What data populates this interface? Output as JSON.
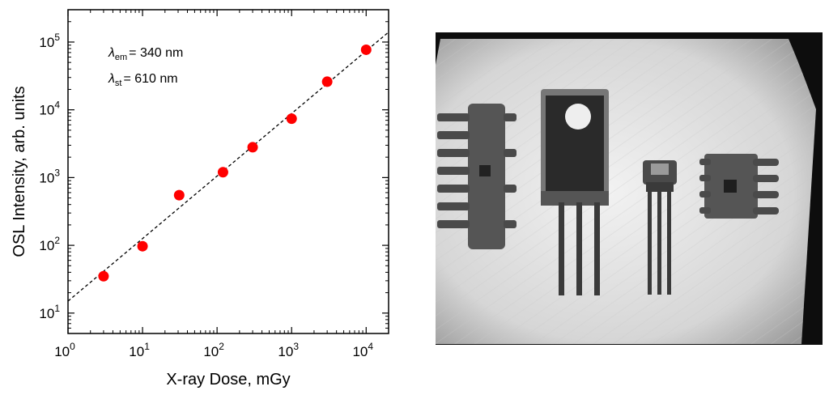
{
  "chart_data": {
    "type": "scatter",
    "xlabel": "X-ray Dose, mGy",
    "ylabel": "OSL Intensity, arb. units",
    "xscale": "log",
    "yscale": "log",
    "xlim": [
      1,
      20000
    ],
    "ylim": [
      5,
      300000
    ],
    "x_ticks": [
      {
        "value": 1,
        "base": "10",
        "exp": "0"
      },
      {
        "value": 10,
        "base": "10",
        "exp": "1"
      },
      {
        "value": 100,
        "base": "10",
        "exp": "2"
      },
      {
        "value": 1000,
        "base": "10",
        "exp": "3"
      },
      {
        "value": 10000,
        "base": "10",
        "exp": "4"
      }
    ],
    "y_ticks": [
      {
        "value": 10,
        "base": "10",
        "exp": "1"
      },
      {
        "value": 100,
        "base": "10",
        "exp": "2"
      },
      {
        "value": 1000,
        "base": "10",
        "exp": "3"
      },
      {
        "value": 10000,
        "base": "10",
        "exp": "4"
      },
      {
        "value": 100000,
        "base": "10",
        "exp": "5"
      }
    ],
    "series": [
      {
        "color": "#ff0000",
        "points": [
          {
            "x": 3,
            "y": 35
          },
          {
            "x": 10,
            "y": 97
          },
          {
            "x": 31,
            "y": 550
          },
          {
            "x": 120,
            "y": 1200
          },
          {
            "x": 300,
            "y": 2800
          },
          {
            "x": 1000,
            "y": 7400
          },
          {
            "x": 3000,
            "y": 26000
          },
          {
            "x": 10000,
            "y": 77000
          }
        ]
      }
    ],
    "fit_line": {
      "style": "dashed",
      "color": "#000000",
      "x": [
        1,
        20000
      ],
      "y": [
        15,
        140000
      ]
    },
    "annotations": [
      {
        "symbol": "λ",
        "subscript": "em",
        "text": "= 340 nm"
      },
      {
        "symbol": "λ",
        "subscript": "st",
        "text": "= 610 nm"
      }
    ],
    "grid": false,
    "legend": "none"
  },
  "image_panel": {
    "description_icon": "xray-electronic-components",
    "components": [
      "ic-chip-left",
      "power-transistor",
      "small-transistor",
      "ic-chip-right"
    ]
  }
}
